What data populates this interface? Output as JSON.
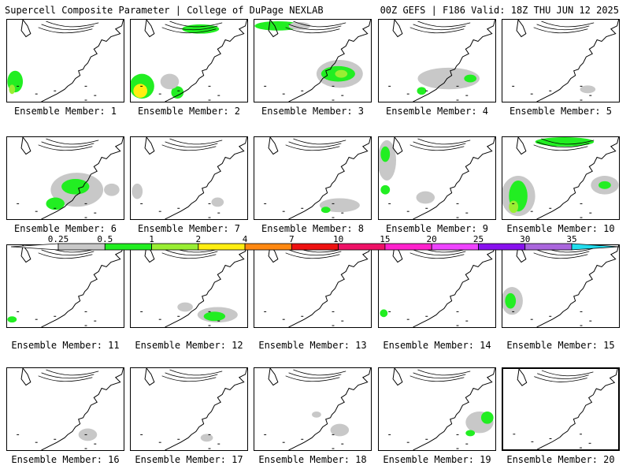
{
  "header": {
    "left": "Supercell Composite Parameter | College of DuPage NEXLAB",
    "right": "00Z GEFS | F186 Valid: 18Z THU JUN 12 2025"
  },
  "members": [
    {
      "label": "Ensemble Member: 1",
      "blobs": [
        {
          "x": 10,
          "y": 80,
          "rx": 10,
          "ry": 14,
          "c": "green"
        },
        {
          "x": 6,
          "y": 90,
          "rx": 4,
          "ry": 6,
          "c": "lgreen"
        }
      ]
    },
    {
      "label": "Ensemble Member: 2",
      "blobs": [
        {
          "x": 14,
          "y": 86,
          "rx": 16,
          "ry": 16,
          "c": "green"
        },
        {
          "x": 12,
          "y": 92,
          "rx": 9,
          "ry": 9,
          "c": "yellow"
        },
        {
          "x": 90,
          "y": 12,
          "rx": 24,
          "ry": 6,
          "c": "green"
        },
        {
          "x": 60,
          "y": 94,
          "rx": 8,
          "ry": 8,
          "c": "green"
        },
        {
          "x": 50,
          "y": 80,
          "rx": 12,
          "ry": 10,
          "c": "gray"
        }
      ]
    },
    {
      "label": "Ensemble Member: 3",
      "blobs": [
        {
          "x": 110,
          "y": 70,
          "rx": 30,
          "ry": 18,
          "c": "gray"
        },
        {
          "x": 108,
          "y": 70,
          "rx": 22,
          "ry": 10,
          "c": "green"
        },
        {
          "x": 112,
          "y": 70,
          "rx": 8,
          "ry": 5,
          "c": "lgreen"
        },
        {
          "x": 30,
          "y": 8,
          "rx": 30,
          "ry": 6,
          "c": "green"
        },
        {
          "x": 58,
          "y": 8,
          "rx": 14,
          "ry": 5,
          "c": "gray"
        }
      ]
    },
    {
      "label": "Ensemble Member: 4",
      "blobs": [
        {
          "x": 90,
          "y": 76,
          "rx": 40,
          "ry": 14,
          "c": "gray"
        },
        {
          "x": 118,
          "y": 76,
          "rx": 8,
          "ry": 5,
          "c": "green"
        },
        {
          "x": 55,
          "y": 92,
          "rx": 6,
          "ry": 5,
          "c": "green"
        }
      ]
    },
    {
      "label": "Ensemble Member: 5",
      "blobs": [
        {
          "x": 110,
          "y": 90,
          "rx": 10,
          "ry": 5,
          "c": "gray"
        }
      ]
    },
    {
      "label": "Ensemble Member: 6",
      "blobs": [
        {
          "x": 90,
          "y": 68,
          "rx": 34,
          "ry": 22,
          "c": "gray"
        },
        {
          "x": 88,
          "y": 64,
          "rx": 18,
          "ry": 10,
          "c": "green"
        },
        {
          "x": 62,
          "y": 86,
          "rx": 12,
          "ry": 8,
          "c": "green"
        },
        {
          "x": 135,
          "y": 68,
          "rx": 10,
          "ry": 8,
          "c": "gray"
        }
      ]
    },
    {
      "label": "Ensemble Member: 7",
      "blobs": [
        {
          "x": 8,
          "y": 70,
          "rx": 7,
          "ry": 10,
          "c": "gray"
        },
        {
          "x": 112,
          "y": 84,
          "rx": 8,
          "ry": 6,
          "c": "gray"
        }
      ]
    },
    {
      "label": "Ensemble Member: 8",
      "blobs": [
        {
          "x": 110,
          "y": 88,
          "rx": 26,
          "ry": 9,
          "c": "gray"
        },
        {
          "x": 92,
          "y": 94,
          "rx": 6,
          "ry": 4,
          "c": "green"
        }
      ]
    },
    {
      "label": "Ensemble Member: 9",
      "blobs": [
        {
          "x": 10,
          "y": 30,
          "rx": 12,
          "ry": 26,
          "c": "gray"
        },
        {
          "x": 8,
          "y": 22,
          "rx": 6,
          "ry": 10,
          "c": "green"
        },
        {
          "x": 8,
          "y": 68,
          "rx": 6,
          "ry": 6,
          "c": "green"
        },
        {
          "x": 60,
          "y": 78,
          "rx": 12,
          "ry": 8,
          "c": "gray"
        }
      ]
    },
    {
      "label": "Ensemble Member: 10",
      "blobs": [
        {
          "x": 20,
          "y": 76,
          "rx": 22,
          "ry": 26,
          "c": "gray"
        },
        {
          "x": 20,
          "y": 76,
          "rx": 12,
          "ry": 20,
          "c": "green"
        },
        {
          "x": 14,
          "y": 90,
          "rx": 6,
          "ry": 8,
          "c": "lgreen"
        },
        {
          "x": 132,
          "y": 62,
          "rx": 18,
          "ry": 12,
          "c": "gray"
        },
        {
          "x": 132,
          "y": 62,
          "rx": 8,
          "ry": 5,
          "c": "green"
        },
        {
          "x": 80,
          "y": 6,
          "rx": 38,
          "ry": 6,
          "c": "green"
        }
      ]
    },
    {
      "label": "Ensemble Member: 11",
      "blobs": [
        {
          "x": 6,
          "y": 96,
          "rx": 6,
          "ry": 4,
          "c": "green"
        }
      ]
    },
    {
      "label": "Ensemble Member: 12",
      "blobs": [
        {
          "x": 112,
          "y": 90,
          "rx": 26,
          "ry": 10,
          "c": "gray"
        },
        {
          "x": 108,
          "y": 92,
          "rx": 14,
          "ry": 6,
          "c": "green"
        },
        {
          "x": 70,
          "y": 80,
          "rx": 10,
          "ry": 6,
          "c": "gray"
        }
      ]
    },
    {
      "label": "Ensemble Member: 13",
      "blobs": []
    },
    {
      "label": "Ensemble Member: 14",
      "blobs": [
        {
          "x": 6,
          "y": 88,
          "rx": 5,
          "ry": 5,
          "c": "green"
        }
      ]
    },
    {
      "label": "Ensemble Member: 15",
      "blobs": [
        {
          "x": 12,
          "y": 72,
          "rx": 14,
          "ry": 18,
          "c": "gray"
        },
        {
          "x": 10,
          "y": 72,
          "rx": 7,
          "ry": 10,
          "c": "green"
        }
      ]
    },
    {
      "label": "Ensemble Member: 16",
      "blobs": [
        {
          "x": 104,
          "y": 86,
          "rx": 12,
          "ry": 8,
          "c": "gray"
        }
      ]
    },
    {
      "label": "Ensemble Member: 17",
      "blobs": [
        {
          "x": 98,
          "y": 90,
          "rx": 8,
          "ry": 5,
          "c": "gray"
        }
      ]
    },
    {
      "label": "Ensemble Member: 18",
      "blobs": [
        {
          "x": 110,
          "y": 80,
          "rx": 12,
          "ry": 8,
          "c": "gray"
        },
        {
          "x": 80,
          "y": 60,
          "rx": 6,
          "ry": 4,
          "c": "gray"
        }
      ]
    },
    {
      "label": "Ensemble Member: 19",
      "blobs": [
        {
          "x": 130,
          "y": 70,
          "rx": 18,
          "ry": 14,
          "c": "gray"
        },
        {
          "x": 140,
          "y": 64,
          "rx": 8,
          "ry": 8,
          "c": "green"
        },
        {
          "x": 118,
          "y": 84,
          "rx": 6,
          "ry": 4,
          "c": "green"
        }
      ]
    },
    {
      "label": "Ensemble Member: 20",
      "blobs": [],
      "selected": true
    }
  ],
  "colorbar": {
    "ticks": [
      "0.25",
      "0.5",
      "1",
      "2",
      "4",
      "7",
      "10",
      "15",
      "20",
      "25",
      "30",
      "35"
    ],
    "colors": [
      "#ffffff",
      "#c8c8c8",
      "#22ee22",
      "#99ee33",
      "#ffee11",
      "#ff8811",
      "#ee1111",
      "#ee1166",
      "#ff22cc",
      "#ee44ff",
      "#8811ee",
      "#aa66dd",
      "#22ddee"
    ]
  },
  "palette": {
    "gray": "#c8c8c8",
    "green": "#22ee22",
    "lgreen": "#99ee33",
    "yellow": "#ffee11"
  }
}
